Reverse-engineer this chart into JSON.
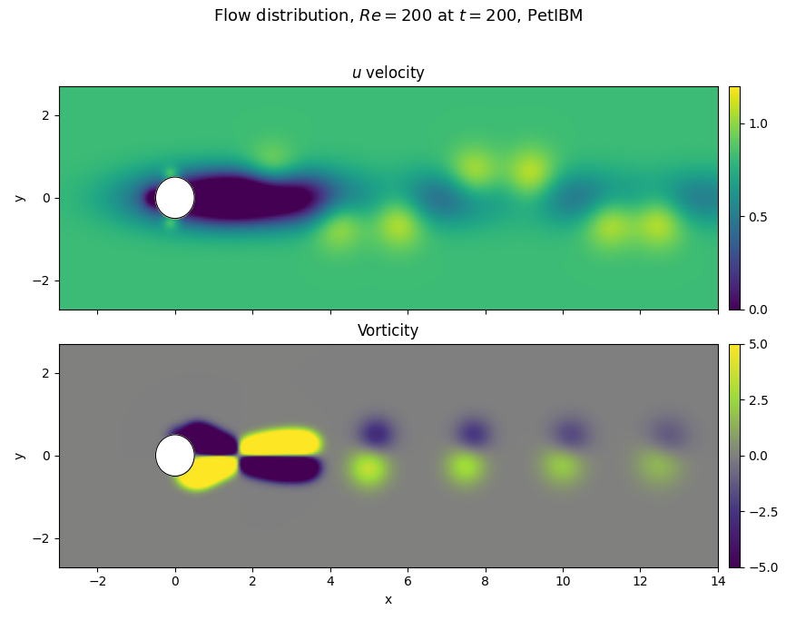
{
  "title": "Flow distribution, $Re = 200$ at $t = 200$, PetIBM",
  "subplot1_title": "$u$ velocity",
  "subplot2_title": "Vorticity",
  "xlabel": "x",
  "ylabel": "y",
  "xlim": [
    -3,
    14
  ],
  "ylim": [
    -2.7,
    2.7
  ],
  "u_vmin": 0.0,
  "u_vmax": 1.2,
  "vort_vmin": -5.0,
  "vort_vmax": 5.0,
  "cylinder_x": 0.0,
  "cylinder_y": 0.0,
  "cylinder_r": 0.5,
  "nx": 500,
  "ny": 150,
  "x_start": -3,
  "x_end": 14,
  "y_start": -2.7,
  "y_end": 2.7,
  "cmap_u": "viridis",
  "cmap_vort": "viridis",
  "figsize": [
    8.77,
    6.83
  ],
  "dpi": 100
}
